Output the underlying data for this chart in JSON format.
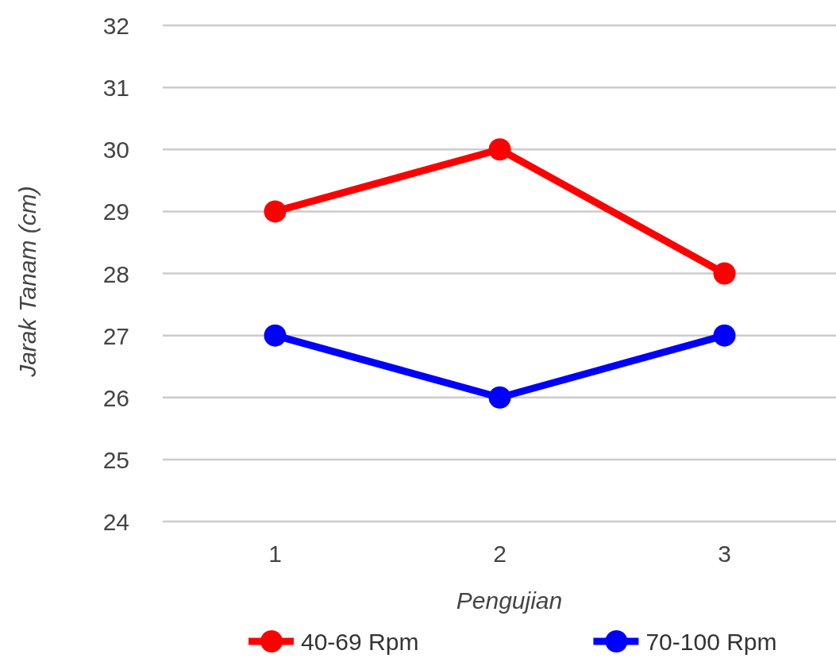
{
  "chart_data": {
    "type": "line",
    "xlabel": "Pengujian",
    "ylabel": "Jarak Tanam (cm)",
    "categories": [
      "1",
      "2",
      "3"
    ],
    "series": [
      {
        "name": "40-69 Rpm",
        "color": "#ff0000",
        "values": [
          29,
          30,
          28
        ]
      },
      {
        "name": "70-100 Rpm",
        "color": "#0000ff",
        "values": [
          27,
          26,
          27
        ]
      }
    ],
    "ylim": [
      24,
      32
    ],
    "yticks": [
      24,
      25,
      26,
      27,
      28,
      29,
      30,
      31,
      32
    ],
    "grid": "y",
    "legend": "bottom",
    "marker": "circle",
    "line_style": "solid"
  }
}
